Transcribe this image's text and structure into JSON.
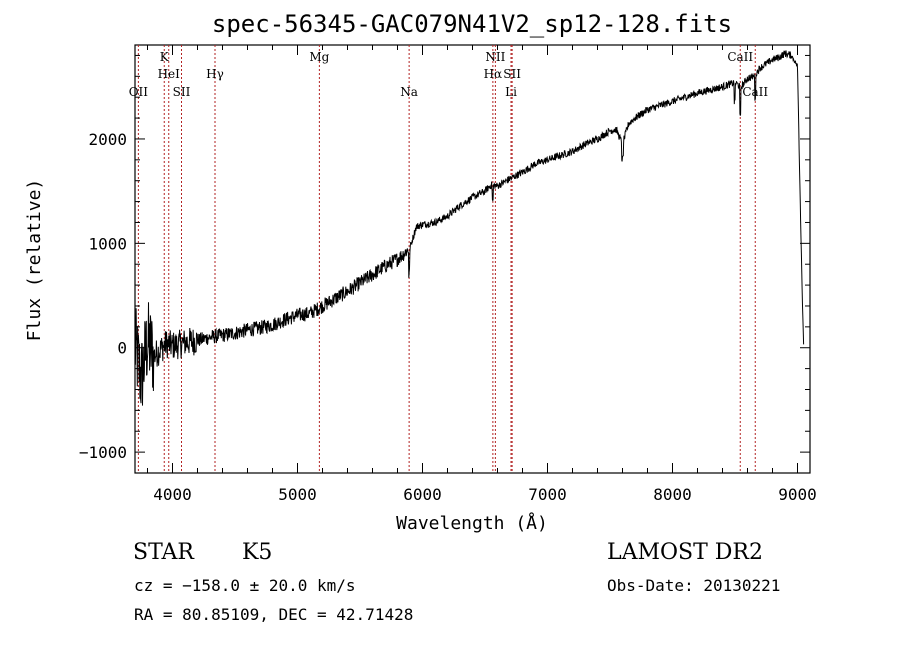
{
  "chart_data": {
    "type": "line",
    "title": "spec-56345-GAC079N41V2_sp12-128.fits",
    "xlabel": "Wavelength (Å)",
    "ylabel": "Flux (relative)",
    "xlim": [
      3700,
      9100
    ],
    "ylim": [
      -1200,
      2900
    ],
    "x_ticks": [
      4000,
      5000,
      6000,
      7000,
      8000,
      9000
    ],
    "y_ticks": [
      -1000,
      0,
      1000,
      2000
    ],
    "grid": false,
    "line_color": "#000000",
    "marker_color": "#b22222",
    "spectral_lines": [
      {
        "label": "OII",
        "wavelength": 3727,
        "row": 3
      },
      {
        "label": "K",
        "wavelength": 3934,
        "row": 1
      },
      {
        "label": "HeI",
        "wavelength": 3970,
        "row": 2
      },
      {
        "label": "SII",
        "wavelength": 4072,
        "row": 3
      },
      {
        "label": "Hγ",
        "wavelength": 4340,
        "row": 2
      },
      {
        "label": "Mg",
        "wavelength": 5175,
        "row": 1
      },
      {
        "label": "Na",
        "wavelength": 5893,
        "row": 3
      },
      {
        "label": "NII",
        "wavelength": 6583,
        "row": 1
      },
      {
        "label": "Hα",
        "wavelength": 6563,
        "row": 2
      },
      {
        "label": "SII",
        "wavelength": 6717,
        "row": 2
      },
      {
        "label": "Li",
        "wavelength": 6708,
        "row": 3
      },
      {
        "label": "CaII",
        "wavelength": 8542,
        "row": 1
      },
      {
        "label": "CaII",
        "wavelength": 8662,
        "row": 3
      }
    ],
    "series": [
      {
        "x": [
          3700,
          3750,
          3800,
          3850,
          3900,
          3950,
          4000,
          4050,
          4100,
          4150,
          4200,
          4300,
          4400,
          4500,
          4600,
          4700,
          4800,
          4900,
          5000,
          5100,
          5200,
          5300,
          5400,
          5500,
          5600,
          5700,
          5800,
          5850,
          5900,
          5950,
          6000,
          6100,
          6200,
          6300,
          6350,
          6400,
          6500,
          6550,
          6600,
          6700,
          6800,
          6900,
          7000,
          7100,
          7200,
          7300,
          7400,
          7500,
          7550,
          7600,
          7650,
          7700,
          7800,
          7900,
          8000,
          8100,
          8200,
          8300,
          8400,
          8450,
          8500,
          8550,
          8600,
          8650,
          8700,
          8800,
          8850,
          8900,
          8950,
          9000,
          9020,
          9040,
          9050
        ],
        "y": [
          20,
          -300,
          60,
          -80,
          -20,
          40,
          20,
          30,
          50,
          60,
          70,
          100,
          120,
          140,
          170,
          190,
          220,
          270,
          310,
          330,
          400,
          470,
          540,
          620,
          700,
          780,
          850,
          900,
          960,
          1160,
          1180,
          1200,
          1260,
          1360,
          1400,
          1440,
          1500,
          1560,
          1550,
          1620,
          1680,
          1760,
          1800,
          1840,
          1880,
          1950,
          2000,
          2080,
          2090,
          1950,
          2150,
          2200,
          2280,
          2320,
          2360,
          2400,
          2440,
          2470,
          2500,
          2520,
          2540,
          2500,
          2580,
          2600,
          2680,
          2760,
          2780,
          2820,
          2800,
          2700,
          1500,
          400,
          0
        ]
      }
    ]
  },
  "footer": {
    "object_class": "STAR",
    "subclass": "K5",
    "survey": "LAMOST DR2",
    "cz": "cz = −158.0 ± 20.0 km/s",
    "obs_date": "Obs-Date: 20130221",
    "coords": "RA =  80.85109, DEC =  42.71428"
  }
}
